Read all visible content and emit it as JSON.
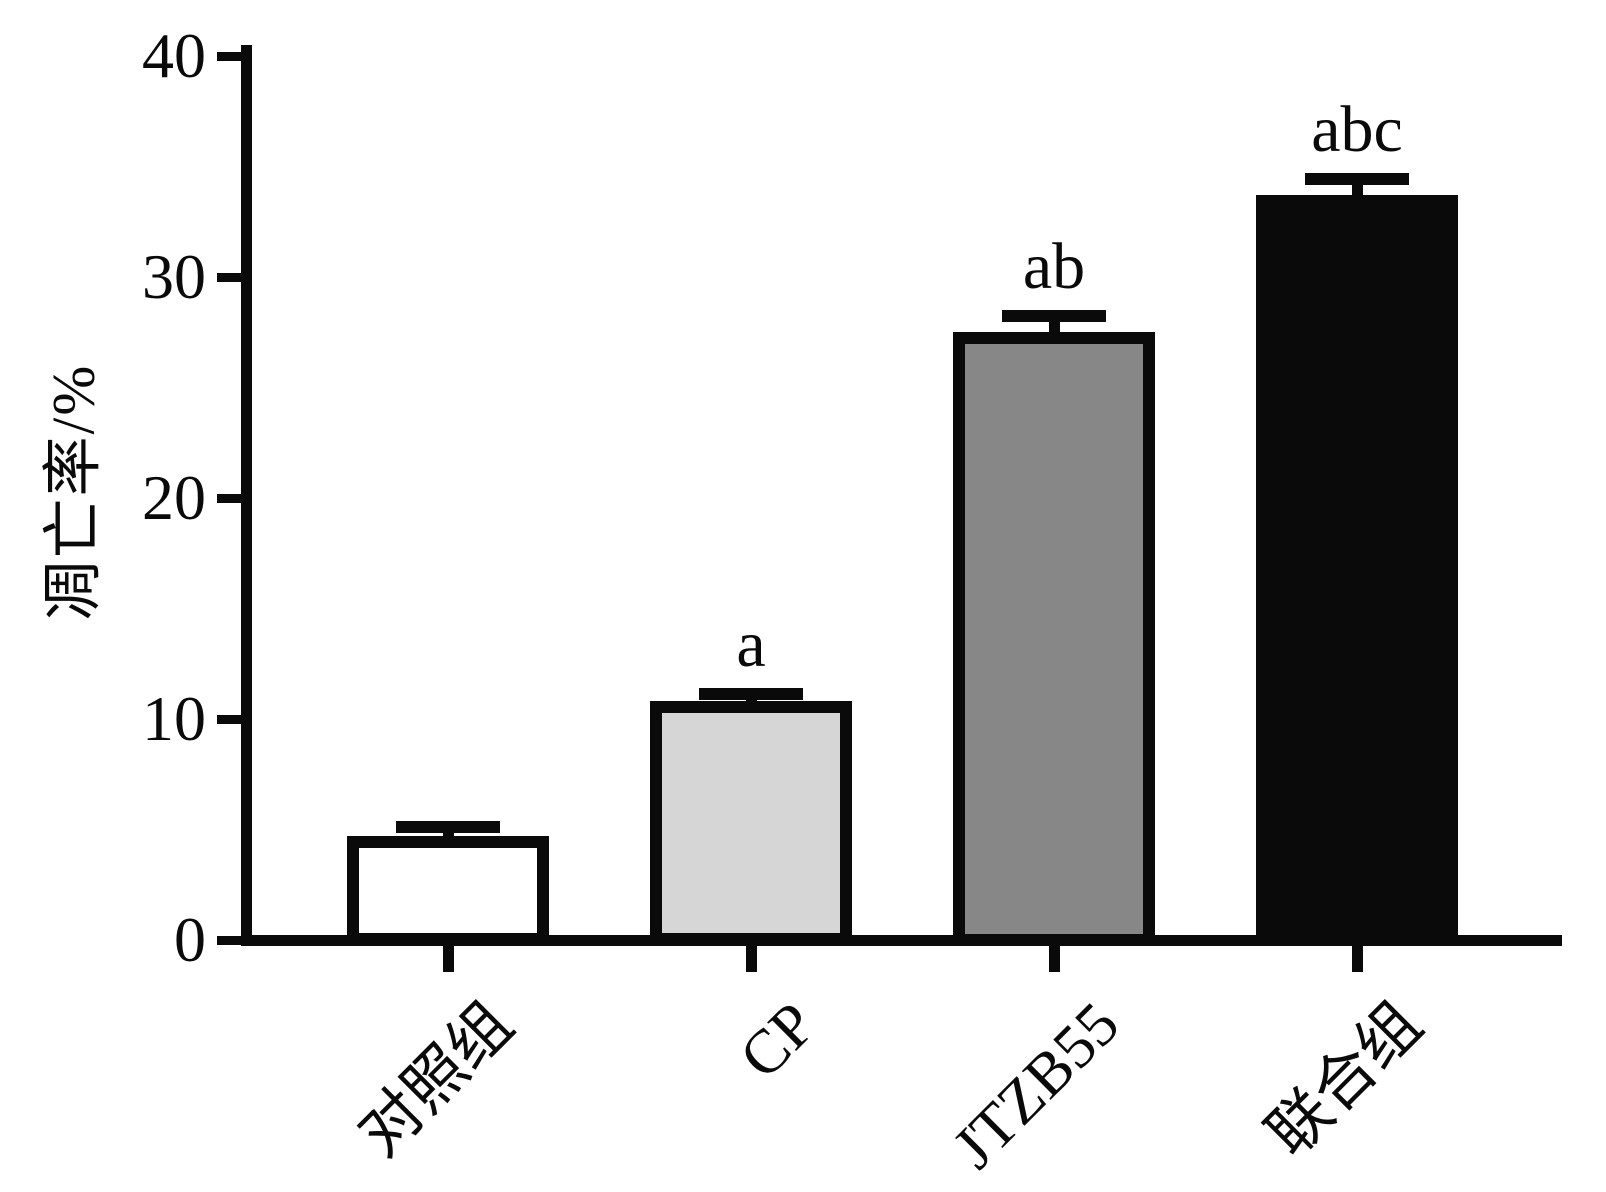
{
  "chart_data": {
    "type": "bar",
    "title": "",
    "ylabel": "凋亡率/%",
    "xlabel": "",
    "categories": [
      "对照组",
      "CP",
      "JTZB55",
      "联合组"
    ],
    "values": [
      4.7,
      10.8,
      27.5,
      33.7
    ],
    "errors": [
      0.4,
      0.35,
      0.75,
      0.75
    ],
    "sig_labels": [
      "",
      "a",
      "ab",
      "abc"
    ],
    "bar_fills": [
      "#ffffff",
      "#d6d6d6",
      "#878787",
      "#0a0a0a"
    ],
    "bar_border_color": "#0a0a0a",
    "axis_color": "#0a0a0a",
    "ylim": [
      0,
      40
    ],
    "yticks": [
      0,
      10,
      20,
      30,
      40
    ],
    "grid": false,
    "legend": null
  }
}
